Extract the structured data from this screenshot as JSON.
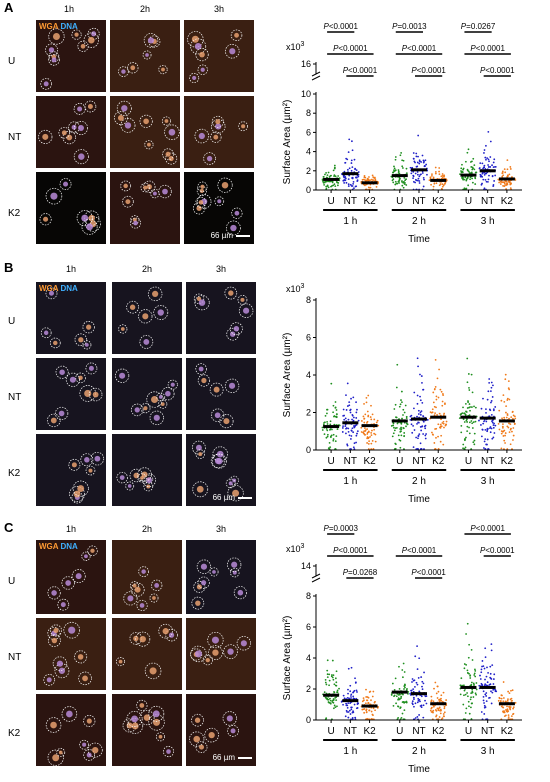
{
  "stain": {
    "wga": "WGA",
    "dna": "DNA"
  },
  "columns": [
    "1h",
    "2h",
    "3h"
  ],
  "rows": [
    "U",
    "NT",
    "K2"
  ],
  "scalebar": "66 µm",
  "colors": {
    "U": "#1f8f1f",
    "NT": "#1f1fc8",
    "K2": "#f07a1a"
  },
  "panels": [
    {
      "label": "A",
      "show_dna": true,
      "chart_data": {
        "type": "scatter",
        "groups": [
          "U",
          "NT",
          "K2"
        ],
        "timepoints": [
          "1 h",
          "2 h",
          "3 h"
        ],
        "xlabel": "Time",
        "ylabel": "Surface Area (µm²)",
        "y_multiplier": "x10",
        "y_exponent": "3",
        "y_ticks": [
          "0",
          "2",
          "4",
          "6",
          "8",
          "10"
        ],
        "y_break_ticks": [
          "16"
        ],
        "axis_break": true,
        "ylim": [
          0,
          10
        ],
        "series": [
          {
            "name": "U",
            "medians": [
              1.1,
              1.5,
              1.55
            ]
          },
          {
            "name": "NT",
            "medians": [
              1.7,
              2.1,
              2.0
            ]
          },
          {
            "name": "K2",
            "medians": [
              0.75,
              1.0,
              1.15
            ]
          }
        ],
        "annotations": [
          {
            "text": "P<0.0001",
            "time": 0,
            "from": "U",
            "to": "NT",
            "level": 0
          },
          {
            "text": "P<0.0001",
            "time": 0,
            "from": "U",
            "to": "K2",
            "level": 1
          },
          {
            "text": "P<0.0001",
            "time": 0,
            "from": "NT",
            "to": "K2",
            "level": 2
          },
          {
            "text": "P=0.0013",
            "time": 1,
            "from": "U",
            "to": "NT",
            "level": 0
          },
          {
            "text": "P<0.0001",
            "time": 1,
            "from": "U",
            "to": "K2",
            "level": 1
          },
          {
            "text": "P<0.0001",
            "time": 1,
            "from": "NT",
            "to": "K2",
            "level": 2
          },
          {
            "text": "P=0.0267",
            "time": 2,
            "from": "U",
            "to": "NT",
            "level": 0
          },
          {
            "text": "P<0.0001",
            "time": 2,
            "from": "U",
            "to": "K2",
            "level": 1
          },
          {
            "text": "P<0.0001",
            "time": 2,
            "from": "NT",
            "to": "K2",
            "level": 2
          }
        ]
      }
    },
    {
      "label": "B",
      "show_dna": true,
      "chart_data": {
        "type": "scatter",
        "groups": [
          "U",
          "NT",
          "K2"
        ],
        "timepoints": [
          "1 h",
          "2 h",
          "3 h"
        ],
        "xlabel": "Time",
        "ylabel": "Surface Area (µm²)",
        "y_multiplier": "x10",
        "y_exponent": "3",
        "y_ticks": [
          "0",
          "2",
          "4",
          "6",
          "8"
        ],
        "y_break_ticks": [],
        "axis_break": false,
        "ylim": [
          0,
          8
        ],
        "series": [
          {
            "name": "U",
            "medians": [
              1.25,
              1.55,
              1.75
            ]
          },
          {
            "name": "NT",
            "medians": [
              1.45,
              1.65,
              1.7
            ]
          },
          {
            "name": "K2",
            "medians": [
              1.3,
              1.75,
              1.55
            ]
          }
        ],
        "annotations": []
      }
    },
    {
      "label": "C",
      "show_dna": true,
      "chart_data": {
        "type": "scatter",
        "groups": [
          "U",
          "NT",
          "K2"
        ],
        "timepoints": [
          "1 h",
          "2 h",
          "3 h"
        ],
        "xlabel": "Time",
        "ylabel": "Surface Area (µm²)",
        "y_multiplier": "x10",
        "y_exponent": "3",
        "y_ticks": [
          "0",
          "2",
          "4",
          "6",
          "8"
        ],
        "y_break_ticks": [
          "14"
        ],
        "axis_break": true,
        "ylim": [
          0,
          8
        ],
        "series": [
          {
            "name": "U",
            "medians": [
              1.6,
              1.8,
              2.1
            ]
          },
          {
            "name": "NT",
            "medians": [
              1.25,
              1.7,
              2.1
            ]
          },
          {
            "name": "K2",
            "medians": [
              0.9,
              1.05,
              1.05
            ]
          }
        ],
        "annotations": [
          {
            "text": "P=0.0003",
            "time": 0,
            "from": "U",
            "to": "NT",
            "level": 0
          },
          {
            "text": "P<0.0001",
            "time": 0,
            "from": "U",
            "to": "K2",
            "level": 1
          },
          {
            "text": "P=0.0268",
            "time": 0,
            "from": "NT",
            "to": "K2",
            "level": 2
          },
          {
            "text": "P<0.0001",
            "time": 1,
            "from": "U",
            "to": "K2",
            "level": 1
          },
          {
            "text": "P<0.0001",
            "time": 1,
            "from": "NT",
            "to": "K2",
            "level": 2
          },
          {
            "text": "P<0.0001",
            "time": 2,
            "from": "U",
            "to": "K2",
            "level": 0
          },
          {
            "text": "P<0.0001",
            "time": 2,
            "from": "NT",
            "to": "K2",
            "level": 1
          }
        ]
      }
    }
  ]
}
